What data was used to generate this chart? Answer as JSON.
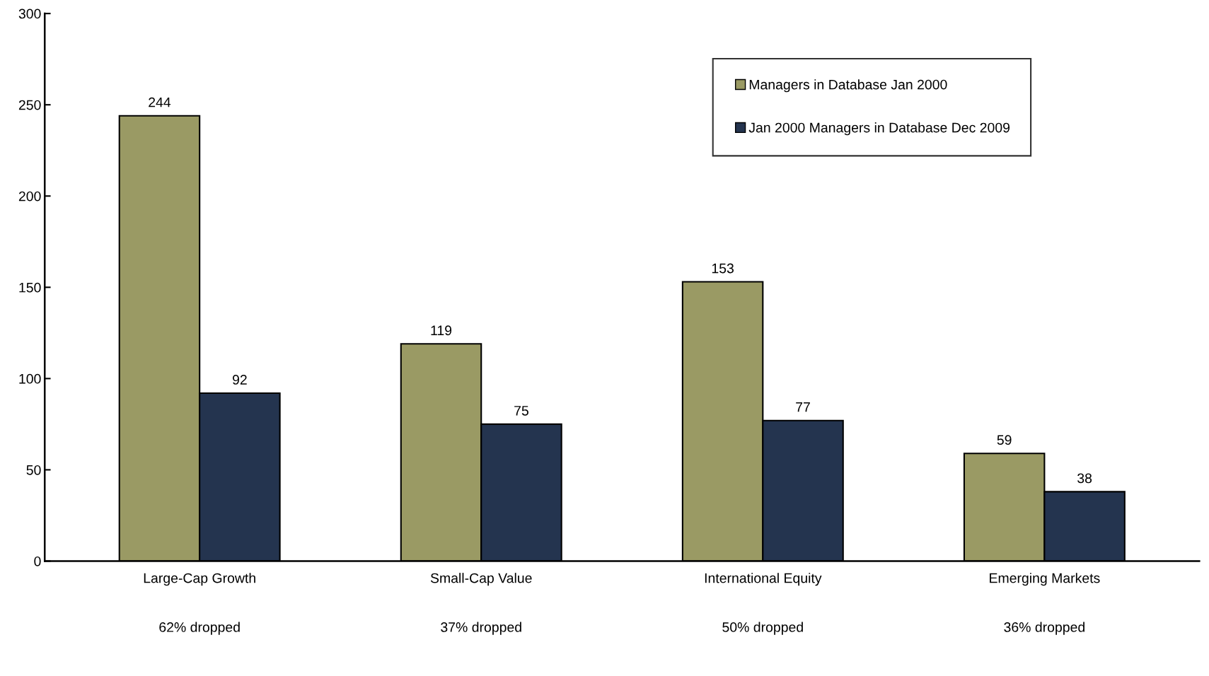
{
  "chart_data": {
    "type": "bar",
    "categories": [
      "Large-Cap Growth",
      "Small-Cap Value",
      "International Equity",
      "Emerging Markets"
    ],
    "series": [
      {
        "name": "Managers in Database Jan 2000",
        "color": "#9a9a64",
        "values": [
          244,
          119,
          153,
          59
        ]
      },
      {
        "name": "Jan 2000 Managers in Database Dec 2009",
        "color": "#24344f",
        "values": [
          92,
          75,
          77,
          38
        ]
      }
    ],
    "ylim": [
      0,
      300
    ],
    "yticks": [
      0,
      50,
      100,
      150,
      200,
      250,
      300
    ],
    "grid": false,
    "legend": "top right",
    "data_labels": true,
    "annotations": [
      "62% dropped",
      "37% dropped",
      "50% dropped",
      "36% dropped"
    ]
  }
}
